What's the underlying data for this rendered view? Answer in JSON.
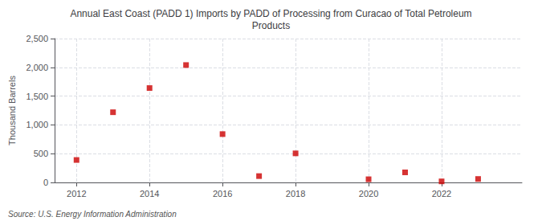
{
  "chart_data": {
    "type": "scatter",
    "title": "Annual East Coast (PADD 1) Imports by PADD of Processing from Curacao of Total Petroleum\nProducts",
    "ylabel": "Thousand Barrels",
    "annotations": [
      "Source: U.S. Energy Information Administration"
    ],
    "x": [
      2012,
      2013,
      2014,
      2015,
      2016,
      2017,
      2018,
      2020,
      2021,
      2022,
      2023
    ],
    "values": [
      390,
      1220,
      1640,
      2040,
      840,
      110,
      505,
      55,
      175,
      18,
      60
    ],
    "color": "#cc0000",
    "marker": "square",
    "xlim": [
      2011.4,
      2024.2
    ],
    "xticks": [
      2012,
      2014,
      2016,
      2018,
      2020,
      2022
    ],
    "ylim": [
      0,
      2500
    ],
    "yticks": [
      0,
      500,
      {
        "value": 1000,
        "label": "1,000"
      },
      {
        "value": 1500,
        "label": "1,500"
      },
      {
        "value": 2000,
        "label": "2,000"
      },
      {
        "value": 2500,
        "label": "2,500"
      }
    ],
    "grid": true
  }
}
